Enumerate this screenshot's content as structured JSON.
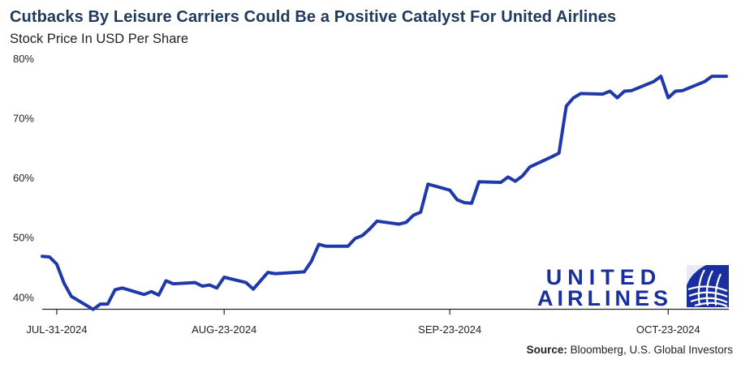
{
  "header": {
    "title": "Cutbacks By Leisure Carriers Could Be a Positive Catalyst For United Airlines",
    "subtitle": "Stock Price In USD Per Share"
  },
  "source": {
    "label": "Source:",
    "text": " Bloomberg, U.S. Global Investors"
  },
  "logo": {
    "line1": "UNITED",
    "line2": "AIRLINES",
    "color": "#1a2f9e",
    "icon": "globe-icon"
  },
  "chart_data": {
    "type": "line",
    "title": "Cutbacks By Leisure Carriers Could Be a Positive Catalyst For United Airlines",
    "subtitle": "Stock Price In USD Per Share",
    "ylabel": "",
    "xlabel": "",
    "ylim": [
      38,
      80
    ],
    "yticks": [
      "40%",
      "50%",
      "60%",
      "70%",
      "80%"
    ],
    "ytick_values": [
      40,
      50,
      60,
      70,
      80
    ],
    "xticks": [
      "JUL-31-2024",
      "AUG-23-2024",
      "SEP-23-2024",
      "OCT-23-2024"
    ],
    "xtick_values": [
      "2024-07-31",
      "2024-08-23",
      "2024-09-23",
      "2024-10-23"
    ],
    "grid": false,
    "line_color": "#1f3aa8",
    "series": [
      {
        "name": "",
        "x": [
          "2024-07-29",
          "2024-07-30",
          "2024-07-31",
          "2024-08-01",
          "2024-08-02",
          "2024-08-05",
          "2024-08-06",
          "2024-08-07",
          "2024-08-08",
          "2024-08-09",
          "2024-08-12",
          "2024-08-13",
          "2024-08-14",
          "2024-08-15",
          "2024-08-16",
          "2024-08-19",
          "2024-08-20",
          "2024-08-21",
          "2024-08-22",
          "2024-08-23",
          "2024-08-26",
          "2024-08-27",
          "2024-08-28",
          "2024-08-29",
          "2024-08-30",
          "2024-09-03",
          "2024-09-04",
          "2024-09-05",
          "2024-09-06",
          "2024-09-09",
          "2024-09-10",
          "2024-09-11",
          "2024-09-12",
          "2024-09-13",
          "2024-09-16",
          "2024-09-17",
          "2024-09-18",
          "2024-09-19",
          "2024-09-20",
          "2024-09-23",
          "2024-09-24",
          "2024-09-25",
          "2024-09-26",
          "2024-09-27",
          "2024-09-30",
          "2024-10-01",
          "2024-10-02",
          "2024-10-03",
          "2024-10-04",
          "2024-10-07",
          "2024-10-08",
          "2024-10-09",
          "2024-10-10",
          "2024-10-11",
          "2024-10-14",
          "2024-10-15",
          "2024-10-16",
          "2024-10-17",
          "2024-10-18",
          "2024-10-21",
          "2024-10-22",
          "2024-10-23",
          "2024-10-24",
          "2024-10-25",
          "2024-10-28",
          "2024-10-29",
          "2024-10-30",
          "2024-10-31"
        ],
        "y": [
          46.8,
          46.7,
          45.5,
          42.3,
          40.1,
          37.9,
          38.8,
          38.8,
          41.2,
          41.5,
          40.4,
          40.9,
          40.3,
          42.7,
          42.2,
          42.4,
          41.8,
          42.0,
          41.5,
          43.3,
          42.4,
          41.3,
          42.7,
          44.1,
          43.9,
          44.2,
          46.0,
          48.8,
          48.5,
          48.5,
          49.8,
          50.3,
          51.4,
          52.7,
          52.2,
          52.5,
          53.7,
          54.2,
          58.9,
          57.9,
          56.3,
          55.8,
          55.7,
          59.3,
          59.2,
          60.1,
          59.4,
          60.3,
          61.8,
          63.5,
          64.1,
          72.0,
          73.4,
          74.1,
          74.0,
          74.5,
          73.4,
          74.5,
          74.6,
          76.1,
          77.0,
          73.4,
          74.5,
          74.6,
          76.1,
          77.0,
          77.0,
          77.0
        ]
      }
    ]
  }
}
